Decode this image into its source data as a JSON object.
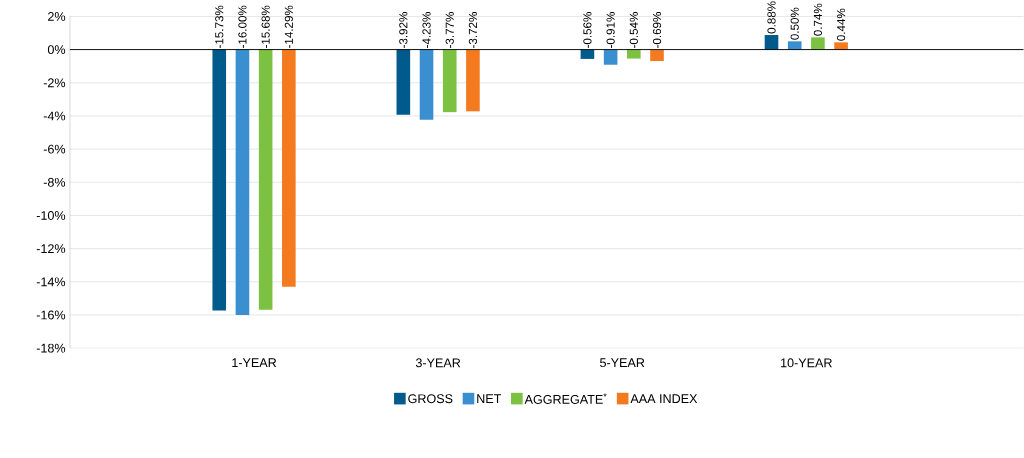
{
  "chart_data": {
    "type": "bar",
    "categories": [
      "1-YEAR",
      "3-YEAR",
      "5-YEAR",
      "10-YEAR"
    ],
    "series": [
      {
        "name": "GROSS",
        "color": "#005a8c",
        "values": [
          -15.73,
          -3.92,
          -0.56,
          0.88
        ],
        "value_labels": [
          "-15.73%",
          "-3.92%",
          "-0.56%",
          "0.88%"
        ]
      },
      {
        "name": "NET",
        "color": "#3a8fd0",
        "values": [
          -16.0,
          -4.23,
          -0.91,
          0.5
        ],
        "value_labels": [
          "-16.00%",
          "-4.23%",
          "-0.91%",
          "0.50%"
        ]
      },
      {
        "name": "AGGREGATE$^{*}$",
        "color": "#7cc142",
        "values": [
          -15.68,
          -3.77,
          -0.54,
          0.74
        ],
        "value_labels": [
          "-15.68%",
          "-3.77%",
          "-0.54%",
          "0.74%"
        ]
      },
      {
        "name": "AAA INDEX",
        "color": "#f47a20",
        "values": [
          -14.29,
          -3.72,
          -0.69,
          0.44
        ],
        "value_labels": [
          "-14.29%",
          "-3.72%",
          "-0.69%",
          "0.44%"
        ]
      }
    ],
    "ylim": [
      -18,
      2
    ],
    "yticks": [
      {
        "value": -18,
        "label": "-18%"
      },
      {
        "value": -16,
        "label": "-16%"
      },
      {
        "value": -14,
        "label": "-14%"
      },
      {
        "value": -12,
        "label": "-12%"
      },
      {
        "value": -10,
        "label": "-10%"
      },
      {
        "value": -8,
        "label": "-8%"
      },
      {
        "value": -6,
        "label": "-6%"
      },
      {
        "value": -4,
        "label": "-4%"
      },
      {
        "value": -2,
        "label": "-2%"
      },
      {
        "value": 0,
        "label": "0%"
      },
      {
        "value": 2,
        "label": "2%"
      }
    ],
    "grid": "y",
    "legend": "bottom"
  }
}
